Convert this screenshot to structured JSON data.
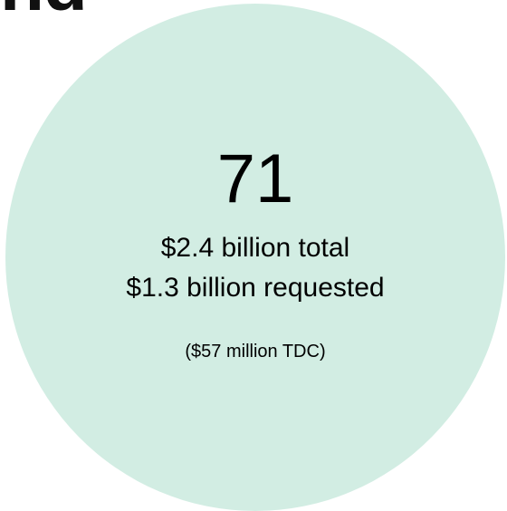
{
  "heading_fragment": "nd",
  "stat": {
    "number": "71",
    "total": "$2.4 billion total",
    "requested": "$1.3 billion requested",
    "note": "($57 million TDC)"
  },
  "colors": {
    "circle_fill": "#d2ede3",
    "text": "#000000"
  }
}
